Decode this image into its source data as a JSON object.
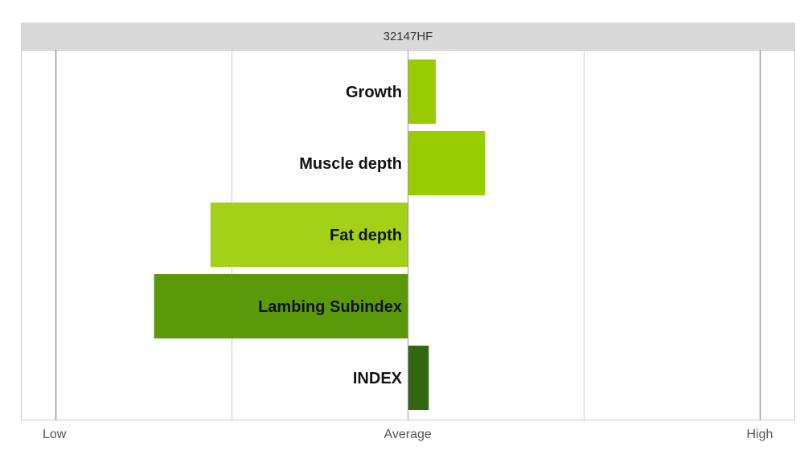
{
  "chart_data": {
    "type": "bar",
    "orientation": "horizontal",
    "title": "32147HF",
    "categories": [
      "Growth",
      "Muscle depth",
      "Fat depth",
      "Lambing Subindex",
      "INDEX"
    ],
    "values": [
      0.08,
      0.22,
      -0.56,
      -0.72,
      0.06
    ],
    "colors": [
      "#99cc00",
      "#99cc00",
      "#a3d117",
      "#5a990a",
      "#336611"
    ],
    "xlim": [
      -1,
      1
    ],
    "x_tick_labels": [
      "Low",
      "Average",
      "High"
    ],
    "grid": true
  }
}
